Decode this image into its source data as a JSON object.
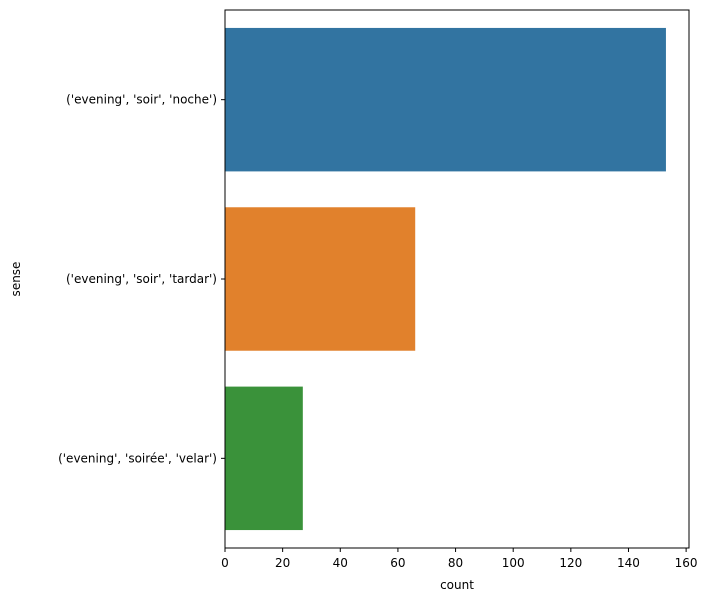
{
  "chart_data": {
    "type": "bar",
    "orientation": "horizontal",
    "categories": [
      "('evening', 'soir', 'noche')",
      "('evening', 'soir', 'tardar')",
      "('evening', 'soirée', 'velar')"
    ],
    "values": [
      153,
      66,
      27
    ],
    "colors": [
      "#3274a1",
      "#e1812c",
      "#3a923a"
    ],
    "xlabel": "count",
    "ylabel": "sense",
    "xlim": [
      0,
      161
    ],
    "xticks": [
      0,
      20,
      40,
      60,
      80,
      100,
      120,
      140,
      160
    ],
    "grid": false
  }
}
